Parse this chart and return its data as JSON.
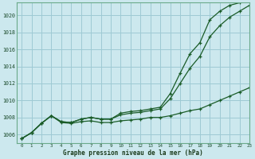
{
  "title": "Graphe pression niveau de la mer (hPa)",
  "bg_color": "#cce8ee",
  "grid_color": "#9ecad4",
  "line_color": "#1a5c28",
  "xlim": [
    -0.5,
    23
  ],
  "ylim": [
    1005.0,
    1021.5
  ],
  "yticks": [
    1006,
    1008,
    1010,
    1012,
    1014,
    1016,
    1018,
    1020
  ],
  "xticks": [
    0,
    1,
    2,
    3,
    4,
    5,
    6,
    7,
    8,
    9,
    10,
    11,
    12,
    13,
    14,
    15,
    16,
    17,
    18,
    19,
    20,
    21,
    22,
    23
  ],
  "line_top": [
    1005.5,
    1006.2,
    1007.3,
    1008.2,
    1007.5,
    1007.4,
    1007.8,
    1008.0,
    1007.8,
    1007.8,
    1008.5,
    1008.7,
    1008.8,
    1009.0,
    1009.2,
    1010.8,
    1013.2,
    1015.5,
    1016.8,
    1019.5,
    1020.5,
    1021.2,
    1021.5,
    1021.8
  ],
  "line_mid": [
    1005.5,
    1006.2,
    1007.3,
    1008.2,
    1007.5,
    1007.4,
    1007.8,
    1008.0,
    1007.8,
    1007.8,
    1008.3,
    1008.5,
    1008.6,
    1008.8,
    1009.0,
    1010.2,
    1012.0,
    1013.8,
    1015.2,
    1017.5,
    1018.8,
    1019.8,
    1020.5,
    1021.2
  ],
  "line_bot": [
    1005.5,
    1006.2,
    1007.3,
    1008.2,
    1007.4,
    1007.3,
    1007.5,
    1007.6,
    1007.4,
    1007.4,
    1007.6,
    1007.7,
    1007.8,
    1008.0,
    1008.0,
    1008.2,
    1008.5,
    1008.8,
    1009.0,
    1009.5,
    1010.0,
    1010.5,
    1011.0,
    1011.5
  ]
}
